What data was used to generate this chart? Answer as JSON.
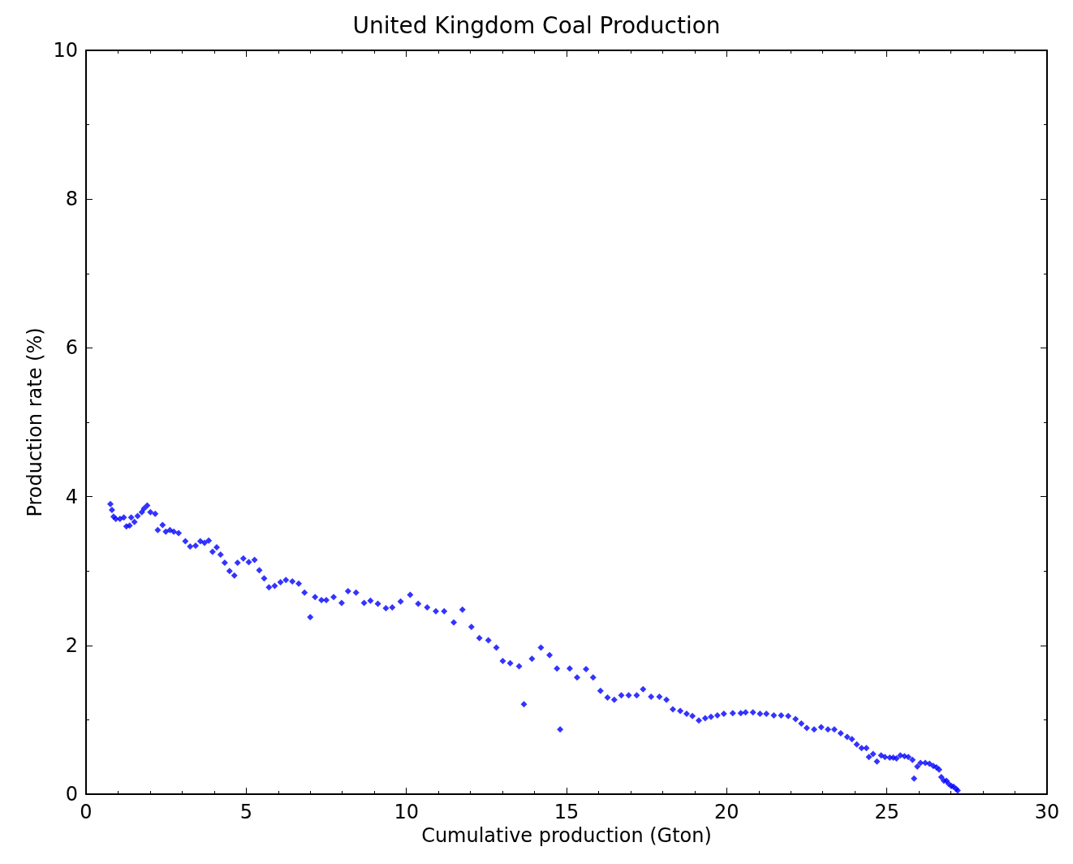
{
  "chart_data": {
    "type": "scatter",
    "title": "United Kingdom Coal Production",
    "xlabel": "Cumulative production (Gton)",
    "ylabel": "Production rate (%)",
    "xlim": [
      0,
      30
    ],
    "xticks": [
      0,
      5,
      10,
      15,
      20,
      25,
      30
    ],
    "ylim": [
      0,
      10
    ],
    "yticks": [
      0,
      2,
      4,
      6,
      8,
      10
    ],
    "grid": false,
    "marker": "diamond",
    "series": [
      {
        "color": "#0000ff",
        "x": [
          0.76,
          0.81,
          0.86,
          0.93,
          1.06,
          1.18,
          1.26,
          1.36,
          1.41,
          1.51,
          1.61,
          1.74,
          1.81,
          1.91,
          2.01,
          2.16,
          2.24,
          2.39,
          2.49,
          2.62,
          2.74,
          2.89,
          3.1,
          3.25,
          3.42,
          3.57,
          3.7,
          3.83,
          3.95,
          4.08,
          4.2,
          4.33,
          4.48,
          4.63,
          4.73,
          4.91,
          5.08,
          5.26,
          5.41,
          5.56,
          5.71,
          5.89,
          6.07,
          6.24,
          6.44,
          6.64,
          6.82,
          7.0,
          7.15,
          7.35,
          7.5,
          7.73,
          7.98,
          8.18,
          8.43,
          8.68,
          8.88,
          9.11,
          9.36,
          9.56,
          9.82,
          10.12,
          10.37,
          10.65,
          10.92,
          11.18,
          11.48,
          11.75,
          12.03,
          12.28,
          12.56,
          12.81,
          13.01,
          13.24,
          13.52,
          13.67,
          13.92,
          14.2,
          14.47,
          14.7,
          14.8,
          15.1,
          15.33,
          15.61,
          15.83,
          16.06,
          16.28,
          16.49,
          16.71,
          16.94,
          17.19,
          17.39,
          17.64,
          17.9,
          18.12,
          18.32,
          18.55,
          18.75,
          18.93,
          19.13,
          19.33,
          19.51,
          19.71,
          19.91,
          20.19,
          20.44,
          20.59,
          20.82,
          21.04,
          21.24,
          21.47,
          21.7,
          21.92,
          22.15,
          22.33,
          22.5,
          22.73,
          22.95,
          23.16,
          23.36,
          23.56,
          23.76,
          23.91,
          24.06,
          24.21,
          24.36,
          24.44,
          24.57,
          24.69,
          24.82,
          24.94,
          25.09,
          25.2,
          25.3,
          25.42,
          25.55,
          25.67,
          25.8,
          25.85,
          25.95,
          26.05,
          26.2,
          26.33,
          26.45,
          26.55,
          26.63,
          26.7,
          26.78,
          26.86,
          26.93,
          27.01,
          27.08,
          27.16,
          27.21
        ],
        "values": [
          3.9,
          3.82,
          3.73,
          3.7,
          3.7,
          3.72,
          3.6,
          3.61,
          3.72,
          3.66,
          3.74,
          3.79,
          3.84,
          3.88,
          3.79,
          3.77,
          3.55,
          3.62,
          3.53,
          3.55,
          3.53,
          3.51,
          3.4,
          3.33,
          3.34,
          3.4,
          3.38,
          3.41,
          3.26,
          3.32,
          3.22,
          3.11,
          3.0,
          2.94,
          3.11,
          3.17,
          3.12,
          3.15,
          3.01,
          2.9,
          2.78,
          2.8,
          2.85,
          2.88,
          2.86,
          2.83,
          2.71,
          2.38,
          2.65,
          2.61,
          2.61,
          2.65,
          2.57,
          2.73,
          2.71,
          2.57,
          2.6,
          2.56,
          2.5,
          2.51,
          2.59,
          2.68,
          2.56,
          2.51,
          2.46,
          2.46,
          2.31,
          2.48,
          2.25,
          2.1,
          2.07,
          1.97,
          1.79,
          1.76,
          1.72,
          1.21,
          1.82,
          1.97,
          1.87,
          1.69,
          0.87,
          1.69,
          1.57,
          1.68,
          1.57,
          1.39,
          1.3,
          1.27,
          1.33,
          1.33,
          1.33,
          1.41,
          1.31,
          1.31,
          1.27,
          1.14,
          1.12,
          1.08,
          1.05,
          0.99,
          1.02,
          1.04,
          1.06,
          1.08,
          1.09,
          1.09,
          1.1,
          1.1,
          1.08,
          1.08,
          1.06,
          1.06,
          1.05,
          1.01,
          0.95,
          0.89,
          0.87,
          0.9,
          0.87,
          0.87,
          0.82,
          0.77,
          0.74,
          0.67,
          0.62,
          0.62,
          0.5,
          0.54,
          0.44,
          0.52,
          0.5,
          0.49,
          0.49,
          0.48,
          0.52,
          0.51,
          0.5,
          0.46,
          0.21,
          0.37,
          0.42,
          0.42,
          0.41,
          0.38,
          0.36,
          0.33,
          0.23,
          0.18,
          0.18,
          0.14,
          0.11,
          0.1,
          0.07,
          0.05
        ]
      }
    ]
  }
}
